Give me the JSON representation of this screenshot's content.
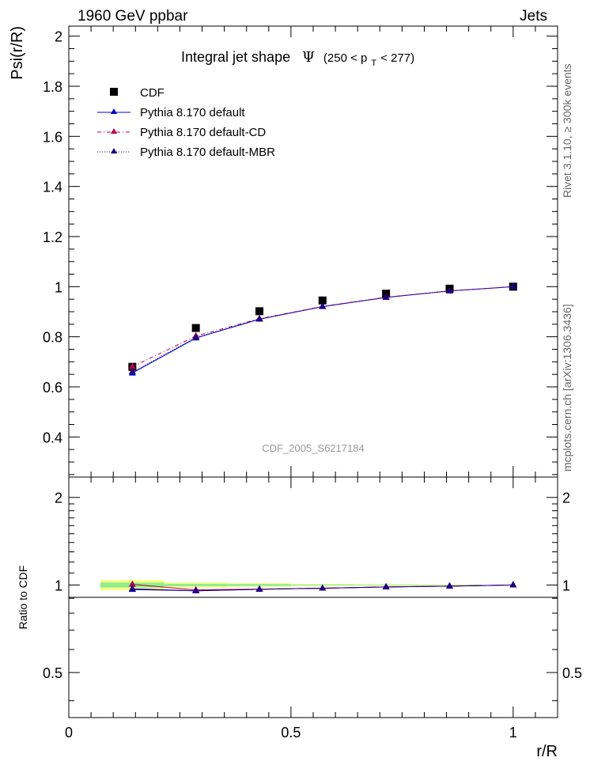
{
  "header": {
    "left_label": "1960 GeV ppbar",
    "right_label": "Jets",
    "side_label_rivet": "Rivet 3.1.10, ≥ 300k events",
    "side_label_mcplots": "mcplots.cern.ch [arXiv:1306.3436]"
  },
  "chart_data": [
    {
      "type": "scatter",
      "title_prefix": "Integral jet shape",
      "title_symbol": "Ψ",
      "title_range_open": "(250 < p",
      "title_range_sub": "T",
      "title_range_close": " < 277)",
      "analysis_label": "CDF_2005_S6217184",
      "xlabel": "",
      "ylabel": "Psi(r/R)",
      "xlim": [
        0,
        1.1
      ],
      "ylim": [
        0.24,
        2.04
      ],
      "yticks": [
        "0.4",
        "0.6",
        "0.8",
        "1",
        "1.2",
        "1.4",
        "1.6",
        "1.8",
        "2"
      ],
      "x": [
        0.143,
        0.286,
        0.429,
        0.571,
        0.714,
        0.857,
        1.0
      ],
      "series": [
        {
          "name": "CDF",
          "values": [
            0.68,
            0.835,
            0.902,
            0.945,
            0.972,
            0.992,
            1.0
          ],
          "color": "#000000",
          "marker": "square"
        },
        {
          "name": "Pythia 8.170 default",
          "values": [
            0.655,
            0.795,
            0.87,
            0.92,
            0.957,
            0.983,
            1.0
          ],
          "color": "#0000cc",
          "marker": "triangle",
          "line": "solid"
        },
        {
          "name": "Pythia 8.170 default-CD",
          "values": [
            0.68,
            0.803,
            0.872,
            0.921,
            0.958,
            0.983,
            1.0
          ],
          "color": "#b4004e",
          "marker": "triangle",
          "line": "dashdot"
        },
        {
          "name": "Pythia 8.170 default-MBR",
          "values": [
            0.66,
            0.797,
            0.871,
            0.921,
            0.957,
            0.983,
            1.0
          ],
          "color": "#1a0080",
          "marker": "triangle",
          "line": "dotted"
        }
      ]
    },
    {
      "type": "scatter",
      "xlabel": "r/R",
      "ylabel": "Ratio to CDF",
      "xlim": [
        0,
        1.1
      ],
      "ylim": [
        0.35,
        2.35
      ],
      "xticks": [
        "0",
        "0.5",
        "1"
      ],
      "yticks": [
        "0.5",
        "1",
        "2"
      ],
      "x": [
        0.143,
        0.286,
        0.429,
        0.571,
        0.714,
        0.857,
        1.0
      ],
      "bands": [
        {
          "x0": 0.071,
          "x1": 0.214,
          "total": 0.04,
          "stat": 0.02
        },
        {
          "x0": 0.214,
          "x1": 0.357,
          "total": 0.02,
          "stat": 0.01
        },
        {
          "x0": 0.357,
          "x1": 0.5,
          "total": 0.015,
          "stat": 0.008
        },
        {
          "x0": 0.5,
          "x1": 0.643,
          "total": 0.008,
          "stat": 0.004
        },
        {
          "x0": 0.643,
          "x1": 0.786,
          "total": 0.006,
          "stat": 0.003
        },
        {
          "x0": 0.786,
          "x1": 0.929,
          "total": 0.004,
          "stat": 0.002
        }
      ],
      "series": [
        {
          "name": "Pythia 8.170 default",
          "values": [
            0.965,
            0.955,
            0.966,
            0.975,
            0.985,
            0.991,
            1.0
          ],
          "color": "#0000cc"
        },
        {
          "name": "Pythia 8.170 default-CD",
          "values": [
            1.005,
            0.962,
            0.968,
            0.975,
            0.985,
            0.991,
            1.0
          ],
          "color": "#b4004e"
        },
        {
          "name": "Pythia 8.170 default-MBR",
          "values": [
            0.97,
            0.955,
            0.966,
            0.975,
            0.985,
            0.991,
            1.0
          ],
          "color": "#1a0080"
        }
      ]
    }
  ]
}
